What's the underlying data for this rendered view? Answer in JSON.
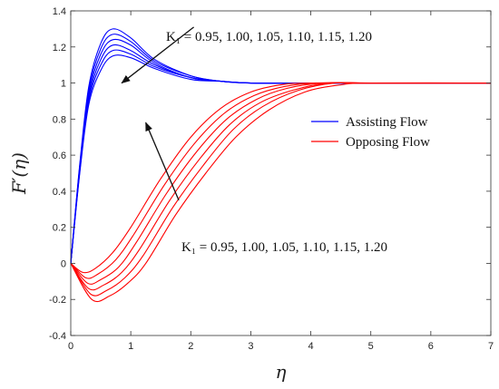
{
  "chart_data": {
    "type": "line",
    "xlabel": "η",
    "ylabel": "F′(η)",
    "xlim": [
      0,
      7
    ],
    "ylim": [
      -0.4,
      1.4
    ],
    "x_ticks": [
      "0",
      "1",
      "2",
      "3",
      "4",
      "5",
      "6",
      "7"
    ],
    "y_ticks": [
      "-0.4",
      "-0.2",
      "0",
      "0.2",
      "0.4",
      "0.6",
      "0.8",
      "1",
      "1.2",
      "1.4"
    ],
    "grid": false,
    "legend_position": "right",
    "legend": [
      {
        "label": "Assisting Flow",
        "color": "#0000ff"
      },
      {
        "label": "Opposing Flow",
        "color": "#ff0000"
      }
    ],
    "annotations": [
      {
        "text": "K₁ = 0.95, 1.00, 1.05, 1.10, 1.15, 1.20",
        "near": "assisting peaks"
      },
      {
        "text": "K₁ = 0.95, 1.00, 1.05, 1.10, 1.15, 1.20",
        "near": "opposing curves"
      }
    ],
    "K1_values": [
      0.95,
      1.0,
      1.05,
      1.1,
      1.15,
      1.2
    ],
    "series": [
      {
        "group": "Assisting Flow",
        "K1": 0.95,
        "color": "#0000ff",
        "points": [
          [
            0,
            0
          ],
          [
            0.15,
            0.55
          ],
          [
            0.3,
            0.98
          ],
          [
            0.5,
            1.22
          ],
          [
            0.7,
            1.3
          ],
          [
            1.0,
            1.25
          ],
          [
            1.4,
            1.13
          ],
          [
            2.0,
            1.04
          ],
          [
            2.5,
            1.01
          ],
          [
            3.0,
            1.0
          ],
          [
            4.0,
            1.0
          ],
          [
            7.0,
            1.0
          ]
        ]
      },
      {
        "group": "Assisting Flow",
        "K1": 1.0,
        "color": "#0000ff",
        "points": [
          [
            0,
            0
          ],
          [
            0.15,
            0.54
          ],
          [
            0.3,
            0.96
          ],
          [
            0.5,
            1.19
          ],
          [
            0.7,
            1.27
          ],
          [
            1.0,
            1.23
          ],
          [
            1.4,
            1.12
          ],
          [
            2.0,
            1.04
          ],
          [
            2.5,
            1.01
          ],
          [
            3.0,
            1.0
          ],
          [
            4.0,
            1.0
          ],
          [
            7.0,
            1.0
          ]
        ]
      },
      {
        "group": "Assisting Flow",
        "K1": 1.05,
        "color": "#0000ff",
        "points": [
          [
            0,
            0
          ],
          [
            0.15,
            0.53
          ],
          [
            0.3,
            0.94
          ],
          [
            0.5,
            1.16
          ],
          [
            0.7,
            1.24
          ],
          [
            1.0,
            1.21
          ],
          [
            1.4,
            1.11
          ],
          [
            2.0,
            1.03
          ],
          [
            2.5,
            1.01
          ],
          [
            3.0,
            1.0
          ],
          [
            4.0,
            1.0
          ],
          [
            7.0,
            1.0
          ]
        ]
      },
      {
        "group": "Assisting Flow",
        "K1": 1.1,
        "color": "#0000ff",
        "points": [
          [
            0,
            0
          ],
          [
            0.15,
            0.52
          ],
          [
            0.3,
            0.92
          ],
          [
            0.5,
            1.13
          ],
          [
            0.7,
            1.21
          ],
          [
            1.0,
            1.18
          ],
          [
            1.4,
            1.1
          ],
          [
            2.0,
            1.03
          ],
          [
            2.5,
            1.01
          ],
          [
            3.0,
            1.0
          ],
          [
            4.0,
            1.0
          ],
          [
            7.0,
            1.0
          ]
        ]
      },
      {
        "group": "Assisting Flow",
        "K1": 1.15,
        "color": "#0000ff",
        "points": [
          [
            0,
            0
          ],
          [
            0.15,
            0.51
          ],
          [
            0.3,
            0.9
          ],
          [
            0.5,
            1.1
          ],
          [
            0.7,
            1.18
          ],
          [
            1.0,
            1.16
          ],
          [
            1.4,
            1.09
          ],
          [
            2.0,
            1.03
          ],
          [
            2.5,
            1.01
          ],
          [
            3.0,
            1.0
          ],
          [
            4.0,
            1.0
          ],
          [
            7.0,
            1.0
          ]
        ]
      },
      {
        "group": "Assisting Flow",
        "K1": 1.2,
        "color": "#0000ff",
        "points": [
          [
            0,
            0
          ],
          [
            0.15,
            0.5
          ],
          [
            0.3,
            0.88
          ],
          [
            0.5,
            1.07
          ],
          [
            0.7,
            1.15
          ],
          [
            1.0,
            1.14
          ],
          [
            1.4,
            1.08
          ],
          [
            2.0,
            1.02
          ],
          [
            2.5,
            1.01
          ],
          [
            3.0,
            1.0
          ],
          [
            4.0,
            1.0
          ],
          [
            7.0,
            1.0
          ]
        ]
      },
      {
        "group": "Opposing Flow",
        "K1": 0.95,
        "color": "#ff0000",
        "points": [
          [
            0,
            0
          ],
          [
            0.2,
            -0.05
          ],
          [
            0.4,
            -0.03
          ],
          [
            0.7,
            0.06
          ],
          [
            1.0,
            0.2
          ],
          [
            1.5,
            0.47
          ],
          [
            2.0,
            0.7
          ],
          [
            2.5,
            0.86
          ],
          [
            3.0,
            0.95
          ],
          [
            3.5,
            0.99
          ],
          [
            4.0,
            1.0
          ],
          [
            5.0,
            1.0
          ],
          [
            7.0,
            1.0
          ]
        ]
      },
      {
        "group": "Opposing Flow",
        "K1": 1.0,
        "color": "#ff0000",
        "points": [
          [
            0,
            0
          ],
          [
            0.25,
            -0.08
          ],
          [
            0.45,
            -0.06
          ],
          [
            0.75,
            0.02
          ],
          [
            1.05,
            0.16
          ],
          [
            1.55,
            0.43
          ],
          [
            2.05,
            0.66
          ],
          [
            2.55,
            0.83
          ],
          [
            3.05,
            0.93
          ],
          [
            3.55,
            0.98
          ],
          [
            4.1,
            1.0
          ],
          [
            5.0,
            1.0
          ],
          [
            7.0,
            1.0
          ]
        ]
      },
      {
        "group": "Opposing Flow",
        "K1": 1.05,
        "color": "#ff0000",
        "points": [
          [
            0,
            0
          ],
          [
            0.28,
            -0.11
          ],
          [
            0.5,
            -0.09
          ],
          [
            0.8,
            -0.02
          ],
          [
            1.1,
            0.12
          ],
          [
            1.6,
            0.39
          ],
          [
            2.1,
            0.62
          ],
          [
            2.6,
            0.8
          ],
          [
            3.1,
            0.91
          ],
          [
            3.6,
            0.97
          ],
          [
            4.2,
            1.0
          ],
          [
            5.0,
            1.0
          ],
          [
            7.0,
            1.0
          ]
        ]
      },
      {
        "group": "Opposing Flow",
        "K1": 1.1,
        "color": "#ff0000",
        "points": [
          [
            0,
            0
          ],
          [
            0.3,
            -0.14
          ],
          [
            0.55,
            -0.12
          ],
          [
            0.85,
            -0.05
          ],
          [
            1.15,
            0.08
          ],
          [
            1.65,
            0.35
          ],
          [
            2.15,
            0.58
          ],
          [
            2.65,
            0.77
          ],
          [
            3.15,
            0.89
          ],
          [
            3.7,
            0.96
          ],
          [
            4.3,
            1.0
          ],
          [
            5.0,
            1.0
          ],
          [
            7.0,
            1.0
          ]
        ]
      },
      {
        "group": "Opposing Flow",
        "K1": 1.15,
        "color": "#ff0000",
        "points": [
          [
            0,
            0
          ],
          [
            0.33,
            -0.17
          ],
          [
            0.6,
            -0.15
          ],
          [
            0.9,
            -0.08
          ],
          [
            1.2,
            0.04
          ],
          [
            1.7,
            0.31
          ],
          [
            2.2,
            0.54
          ],
          [
            2.7,
            0.74
          ],
          [
            3.2,
            0.87
          ],
          [
            3.8,
            0.96
          ],
          [
            4.4,
            1.0
          ],
          [
            5.0,
            1.0
          ],
          [
            7.0,
            1.0
          ]
        ]
      },
      {
        "group": "Opposing Flow",
        "K1": 1.2,
        "color": "#ff0000",
        "points": [
          [
            0,
            0
          ],
          [
            0.35,
            -0.2
          ],
          [
            0.65,
            -0.18
          ],
          [
            0.95,
            -0.11
          ],
          [
            1.25,
            0.0
          ],
          [
            1.75,
            0.27
          ],
          [
            2.25,
            0.5
          ],
          [
            2.75,
            0.7
          ],
          [
            3.3,
            0.85
          ],
          [
            3.9,
            0.95
          ],
          [
            4.5,
            0.99
          ],
          [
            5.0,
            1.0
          ],
          [
            7.0,
            1.0
          ]
        ]
      }
    ]
  }
}
